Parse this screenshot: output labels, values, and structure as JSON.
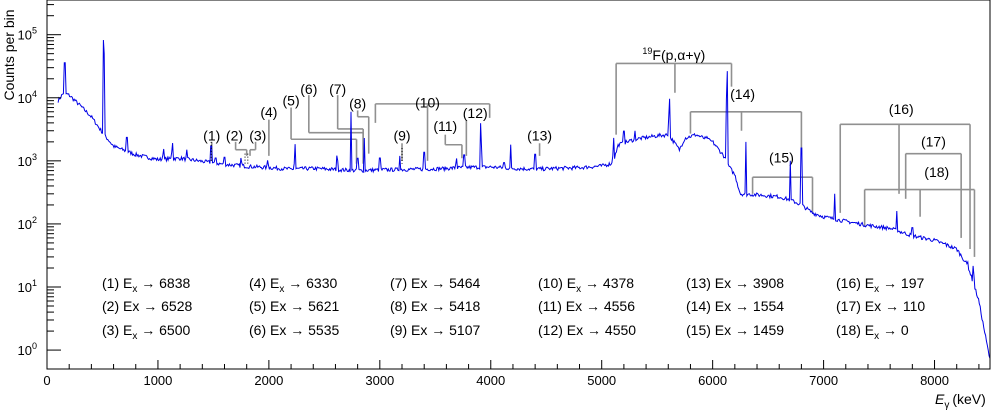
{
  "chart_data": {
    "type": "line",
    "xlabel": "E",
    "xlabel_sub": "γ",
    "xlabel_unit": "(keV)",
    "ylabel": "Counts per bin",
    "xlim": [
      0,
      8500
    ],
    "ylim_log10": [
      -0.3,
      5.55
    ],
    "y_scale": "log",
    "grid": false,
    "legend_position": "inside-bottom",
    "series_color": "#0000e6",
    "bracket_color": "#909090",
    "greyed_color": "#8a8a8a",
    "x_ticks": [
      {
        "value": 0,
        "label": "0"
      },
      {
        "value": 1000,
        "label": "1000"
      },
      {
        "value": 2000,
        "label": "2000"
      },
      {
        "value": 3000,
        "label": "3000"
      },
      {
        "value": 4000,
        "label": "4000"
      },
      {
        "value": 5000,
        "label": "5000"
      },
      {
        "value": 6000,
        "label": "6000"
      },
      {
        "value": 7000,
        "label": "7000"
      },
      {
        "value": 8000,
        "label": "8000"
      }
    ],
    "y_ticks": [
      {
        "exp": 0,
        "base": "10",
        "sup": "0"
      },
      {
        "exp": 1,
        "base": "10",
        "sup": "1"
      },
      {
        "exp": 2,
        "base": "10",
        "sup": "2"
      },
      {
        "exp": 3,
        "base": "10",
        "sup": "3"
      },
      {
        "exp": 4,
        "base": "10",
        "sup": "4"
      },
      {
        "exp": 5,
        "base": "10",
        "sup": "5"
      }
    ],
    "continuum": [
      [
        100,
        9000
      ],
      [
        150,
        12000
      ],
      [
        200,
        11000
      ],
      [
        300,
        7500
      ],
      [
        400,
        5000
      ],
      [
        500,
        2800
      ],
      [
        600,
        1700
      ],
      [
        800,
        1250
      ],
      [
        1000,
        1050
      ],
      [
        1200,
        1100
      ],
      [
        1400,
        980
      ],
      [
        1600,
        880
      ],
      [
        1800,
        820
      ],
      [
        2000,
        780
      ],
      [
        2200,
        740
      ],
      [
        2400,
        760
      ],
      [
        2600,
        730
      ],
      [
        2800,
        700
      ],
      [
        3000,
        720
      ],
      [
        3200,
        730
      ],
      [
        3400,
        740
      ],
      [
        3600,
        760
      ],
      [
        3800,
        790
      ],
      [
        4000,
        800
      ],
      [
        4200,
        760
      ],
      [
        4400,
        740
      ],
      [
        4600,
        760
      ],
      [
        4800,
        780
      ],
      [
        5000,
        830
      ],
      [
        5100,
        920
      ],
      [
        5150,
        1800
      ],
      [
        5300,
        2200
      ],
      [
        5500,
        2500
      ],
      [
        5600,
        2600
      ],
      [
        5650,
        2000
      ],
      [
        5700,
        1500
      ],
      [
        5750,
        2300
      ],
      [
        5850,
        2600
      ],
      [
        6000,
        2000
      ],
      [
        6100,
        1200
      ],
      [
        6150,
        800
      ],
      [
        6200,
        600
      ],
      [
        6250,
        300
      ],
      [
        6400,
        290
      ],
      [
        6600,
        270
      ],
      [
        6700,
        240
      ],
      [
        6800,
        200
      ],
      [
        6900,
        150
      ],
      [
        7000,
        130
      ],
      [
        7200,
        110
      ],
      [
        7400,
        95
      ],
      [
        7600,
        85
      ],
      [
        7800,
        65
      ],
      [
        8000,
        55
      ],
      [
        8200,
        40
      ],
      [
        8300,
        22
      ],
      [
        8400,
        6
      ],
      [
        8450,
        2
      ],
      [
        8500,
        0.7
      ]
    ],
    "peaks": [
      {
        "x": 160,
        "y": 60000
      },
      {
        "x": 511,
        "y": 130000
      },
      {
        "x": 720,
        "y": 3300
      },
      {
        "x": 1050,
        "y": 1700
      },
      {
        "x": 1130,
        "y": 2200
      },
      {
        "x": 1260,
        "y": 1500
      },
      {
        "x": 1480,
        "y": 2500
      },
      {
        "x": 1520,
        "y": 1300
      },
      {
        "x": 1600,
        "y": 1400
      },
      {
        "x": 1750,
        "y": 1200
      },
      {
        "x": 1990,
        "y": 1100
      },
      {
        "x": 2235,
        "y": 2000
      },
      {
        "x": 2615,
        "y": 1500
      },
      {
        "x": 2740,
        "y": 6000
      },
      {
        "x": 2800,
        "y": 1500
      },
      {
        "x": 2860,
        "y": 2300
      },
      {
        "x": 3000,
        "y": 1500
      },
      {
        "x": 3180,
        "y": 1200
      },
      {
        "x": 3400,
        "y": 2000
      },
      {
        "x": 3690,
        "y": 1200
      },
      {
        "x": 3760,
        "y": 1700
      },
      {
        "x": 3910,
        "y": 5000
      },
      {
        "x": 4120,
        "y": 1100
      },
      {
        "x": 4180,
        "y": 1800
      },
      {
        "x": 4400,
        "y": 1800
      },
      {
        "x": 5107,
        "y": 2500
      },
      {
        "x": 5200,
        "y": 4000
      },
      {
        "x": 5300,
        "y": 3000
      },
      {
        "x": 5610,
        "y": 12000
      },
      {
        "x": 5950,
        "y": 2500
      },
      {
        "x": 6130,
        "y": 35000
      },
      {
        "x": 6300,
        "y": 2000
      },
      {
        "x": 6700,
        "y": 1000
      },
      {
        "x": 6800,
        "y": 3000
      },
      {
        "x": 7100,
        "y": 300
      },
      {
        "x": 7660,
        "y": 160
      },
      {
        "x": 7800,
        "y": 110
      },
      {
        "x": 8100,
        "y": 50
      },
      {
        "x": 8300,
        "y": 25
      },
      {
        "x": 8350,
        "y": 25
      }
    ],
    "markers": [
      {
        "x": 1480,
        "y_low": 1000,
        "y_high": 2000,
        "dotted": true
      },
      {
        "x": 1785,
        "y_low": 900,
        "y_high": 1300,
        "dotted": true
      },
      {
        "x": 1810,
        "y_low": 900,
        "y_high": 1300,
        "dotted": true
      },
      {
        "x": 3200,
        "y_low": 900,
        "y_high": 1600,
        "dotted": true
      }
    ],
    "brackets": [
      {
        "id": "1",
        "label": "(1)",
        "grey": true,
        "lx": 1485,
        "ly": 2100,
        "drops": [
          [
            1485,
            2000,
            1000
          ]
        ]
      },
      {
        "id": "2",
        "label": "(2)",
        "grey": false,
        "lx": 1690,
        "ly": 2100,
        "drops": [
          [
            1700,
            2000,
            1500
          ]
        ],
        "bar": [
          1700,
          1800,
          1500
        ],
        "second": [
          1800,
          1500,
          1200
        ]
      },
      {
        "id": "3",
        "label": "(3)",
        "grey": false,
        "lx": 1900,
        "ly": 2100,
        "drops": [
          [
            1880,
            2000,
            1500
          ]
        ],
        "bar": [
          1830,
          1880,
          1500
        ],
        "second": [
          1830,
          1500,
          1200
        ]
      },
      {
        "id": "4",
        "label": "(4)",
        "grey": false,
        "lx": 2000,
        "ly": 5000,
        "drops": [
          [
            2000,
            4500,
            1200
          ]
        ]
      },
      {
        "id": "5",
        "label": "(5)",
        "grey": false,
        "lx": 2200,
        "ly": 7500,
        "drops": [
          [
            2200,
            7000,
            2200
          ]
        ],
        "bar": [
          2200,
          2790,
          2200
        ],
        "second": [
          2790,
          2200,
          900
        ]
      },
      {
        "id": "6",
        "label": "(6)",
        "grey": false,
        "lx": 2360,
        "ly": 11500,
        "drops": [
          [
            2360,
            11000,
            2800
          ]
        ],
        "bar": [
          2360,
          2850,
          2800
        ],
        "second": [
          2850,
          2800,
          900
        ]
      },
      {
        "id": "7",
        "label": "(7)",
        "grey": false,
        "lx": 2620,
        "ly": 11500,
        "drops": [
          [
            2620,
            11000,
            3200
          ]
        ],
        "bar": [
          2620,
          2850,
          3200
        ],
        "second": [
          2850,
          3200,
          1500
        ]
      },
      {
        "id": "8",
        "label": "(8)",
        "grey": false,
        "lx": 2800,
        "ly": 6800,
        "drops": [
          [
            2800,
            6300,
            5000
          ]
        ],
        "bar": [
          2800,
          2900,
          5000
        ],
        "second": [
          2900,
          5000,
          1300
        ]
      },
      {
        "id": "9",
        "label": "(9)",
        "grey": true,
        "lx": 3200,
        "ly": 2100,
        "drops": [
          [
            3200,
            1900,
            1000
          ]
        ]
      },
      {
        "id": "10",
        "label": "(10)",
        "grey": false,
        "lx": 3430,
        "ly": 7000,
        "drops": [],
        "bar": [
          2960,
          3990,
          8000
        ],
        "multi": [
          [
            2960,
            8000,
            4000
          ],
          [
            3430,
            8000,
            1000
          ],
          [
            3990,
            8000,
            4800
          ]
        ]
      },
      {
        "id": "11",
        "label": "(11)",
        "grey": false,
        "lx": 3590,
        "ly": 3000,
        "drops": [
          [
            3590,
            2600,
            1800
          ]
        ],
        "bar": [
          3590,
          3740,
          1800
        ],
        "second": [
          3740,
          1800,
          1100
        ]
      },
      {
        "id": "12",
        "label": "(12)",
        "grey": false,
        "lx": 3860,
        "ly": 4800,
        "drops": [
          [
            3780,
            4400,
            1200
          ]
        ]
      },
      {
        "id": "13",
        "label": "(13)",
        "grey": false,
        "lx": 4440,
        "ly": 2100,
        "drops": [
          [
            4440,
            1900,
            1200
          ]
        ]
      },
      {
        "id": "F19",
        "label": "F(p,α+γ)",
        "sup": "19",
        "grey": false,
        "lx": 5650,
        "ly": 40000,
        "drops": [],
        "bar": [
          5130,
          6170,
          35000
        ],
        "multi": [
          [
            5130,
            35000,
            2600
          ],
          [
            5660,
            35000,
            12000
          ],
          [
            6170,
            35000,
            15000
          ]
        ]
      },
      {
        "id": "14",
        "label": "(14)",
        "grey": false,
        "lx": 6270,
        "ly": 9500,
        "drops": [],
        "bar": [
          5800,
          6800,
          6000
        ],
        "multi": [
          [
            5800,
            6000,
            2700
          ],
          [
            6260,
            6000,
            3000
          ],
          [
            6800,
            6000,
            1300
          ]
        ]
      },
      {
        "id": "15",
        "label": "(15)",
        "grey": false,
        "lx": 6620,
        "ly": 950,
        "drops": [],
        "bar": [
          6360,
          6900,
          550
        ],
        "multi": [
          [
            6360,
            550,
            300
          ],
          [
            6900,
            550,
            150
          ]
        ]
      },
      {
        "id": "16",
        "label": "(16)",
        "grey": false,
        "lx": 7700,
        "ly": 5500,
        "drops": [],
        "bar": [
          7150,
          8320,
          3800
        ],
        "multi": [
          [
            7150,
            3800,
            150
          ],
          [
            7680,
            3800,
            300
          ],
          [
            8320,
            3800,
            40
          ]
        ]
      },
      {
        "id": "17",
        "label": "(17)",
        "grey": false,
        "lx": 7990,
        "ly": 1700,
        "drops": [],
        "bar": [
          7740,
          8240,
          1300
        ],
        "multi": [
          [
            7740,
            1300,
            250
          ],
          [
            8240,
            1300,
            60
          ]
        ]
      },
      {
        "id": "18",
        "label": "(18)",
        "grey": false,
        "lx": 8020,
        "ly": 550,
        "drops": [],
        "bar": [
          7370,
          8360,
          350
        ],
        "multi": [
          [
            7370,
            350,
            90
          ],
          [
            7870,
            350,
            130
          ],
          [
            8360,
            350,
            30
          ]
        ]
      }
    ],
    "legend": [
      [
        {
          "text": "(1) E",
          "sub": "x",
          "rest": " → 6838",
          "grey": true
        },
        {
          "text": "(2) Ex → 6528",
          "grey": false
        },
        {
          "text": "(3) E",
          "sub": "x",
          "rest": " → 6500",
          "grey": false
        }
      ],
      [
        {
          "text": "(4) E",
          "sub": "x",
          "rest": " → 6330",
          "grey": false
        },
        {
          "text": "(5) Ex → 5621",
          "grey": false
        },
        {
          "text": "(6) Ex → 5535",
          "grey": false
        }
      ],
      [
        {
          "text": "(7) Ex → 5464",
          "grey": false
        },
        {
          "text": "(8) Ex → 5418",
          "grey": false
        },
        {
          "text": "(9) Ex → 5107",
          "grey": true
        }
      ],
      [
        {
          "text": "(10) E",
          "sub": "x",
          "rest": " → 4378",
          "grey": false
        },
        {
          "text": "(11) Ex → 4556",
          "grey": false
        },
        {
          "text": "(12) Ex → 4550",
          "grey": false
        }
      ],
      [
        {
          "text": "(13) Ex → 3908",
          "grey": false
        },
        {
          "text": "(14) Ex → 1554",
          "grey": false
        },
        {
          "text": "(15) Ex → 1459",
          "grey": false
        }
      ],
      [
        {
          "text": "(16) E",
          "sub": "x",
          "rest": " → 197",
          "grey": false
        },
        {
          "text": "(17) Ex → 110",
          "grey": false
        },
        {
          "text": "(18) E",
          "sub": "x",
          "rest": " → 0",
          "grey": false
        }
      ]
    ]
  }
}
